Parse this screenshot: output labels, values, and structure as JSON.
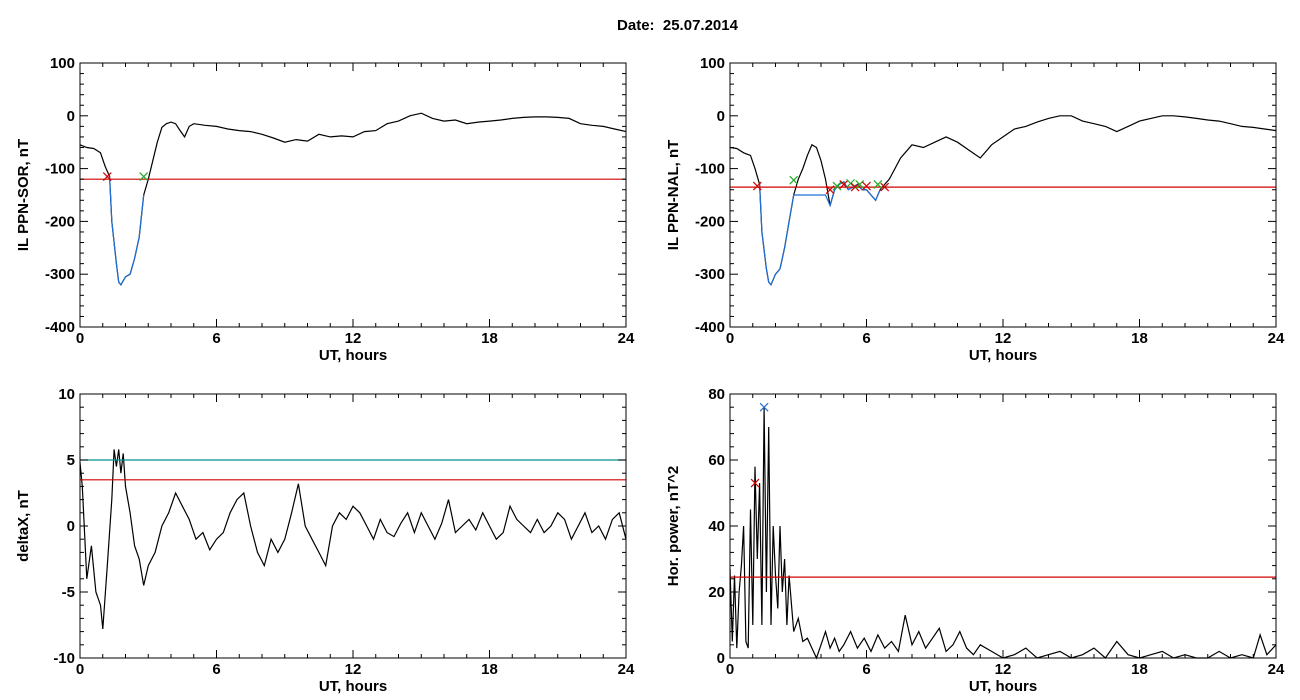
{
  "figure": {
    "title": "Date:  25.07.2014"
  },
  "chart_data": [
    {
      "type": "line",
      "title": "",
      "xlabel": "UT, hours",
      "ylabel": "IL PPN-SOR, nT",
      "xlim": [
        0,
        24
      ],
      "ylim": [
        -400,
        100
      ],
      "xticks": [
        0,
        6,
        12,
        18,
        24
      ],
      "yticks": [
        -400,
        -300,
        -200,
        -100,
        0,
        100
      ],
      "series": [
        {
          "color": "#000000",
          "x": [
            0,
            0.3,
            0.6,
            0.9,
            1.1,
            1.3,
            1.4,
            1.6,
            1.7,
            1.8,
            2.0,
            2.2,
            2.4,
            2.6,
            2.8,
            3.0,
            3.2,
            3.4,
            3.6,
            3.8,
            4.0,
            4.2,
            4.4,
            4.6,
            4.8,
            5.0,
            5.5,
            6.0,
            6.5,
            7.0,
            7.5,
            8.0,
            8.5,
            9.0,
            9.5,
            10.0,
            10.5,
            11.0,
            11.5,
            12.0,
            12.5,
            13.0,
            13.5,
            14.0,
            14.5,
            15.0,
            15.5,
            16.0,
            16.5,
            17.0,
            17.5,
            18.0,
            18.5,
            19.0,
            19.5,
            20.0,
            20.5,
            21.0,
            21.5,
            22.0,
            22.5,
            23.0,
            23.5,
            24.0
          ],
          "y": [
            -55,
            -60,
            -62,
            -70,
            -95,
            -115,
            -200,
            -280,
            -315,
            -320,
            -305,
            -300,
            -270,
            -230,
            -150,
            -120,
            -85,
            -50,
            -22,
            -15,
            -12,
            -15,
            -28,
            -40,
            -20,
            -15,
            -18,
            -20,
            -25,
            -28,
            -30,
            -35,
            -42,
            -50,
            -45,
            -48,
            -35,
            -40,
            -38,
            -40,
            -30,
            -28,
            -15,
            -10,
            0,
            5,
            -5,
            -10,
            -8,
            -15,
            -12,
            -10,
            -8,
            -5,
            -3,
            -2,
            -2,
            -3,
            -5,
            -15,
            -18,
            -20,
            -25,
            -30
          ]
        },
        {
          "color": "#1f6fd6",
          "x": [
            1.3,
            1.4,
            1.6,
            1.7,
            1.8,
            2.0,
            2.2,
            2.4,
            2.6,
            2.8
          ],
          "y": [
            -115,
            -200,
            -280,
            -315,
            -320,
            -305,
            -300,
            -270,
            -230,
            -150
          ]
        },
        {
          "color": "#d00000",
          "x": [
            0,
            24
          ],
          "y": [
            -120,
            -120
          ]
        }
      ],
      "markers": [
        {
          "x": 1.2,
          "y": -115,
          "color": "#d00000"
        },
        {
          "x": 2.8,
          "y": -115,
          "color": "#22aa22"
        }
      ]
    },
    {
      "type": "line",
      "title": "",
      "xlabel": "UT, hours",
      "ylabel": "IL PPN-NAL, nT",
      "xlim": [
        0,
        24
      ],
      "ylim": [
        -400,
        100
      ],
      "xticks": [
        0,
        6,
        12,
        18,
        24
      ],
      "yticks": [
        -400,
        -300,
        -200,
        -100,
        0,
        100
      ],
      "series": [
        {
          "color": "#000000",
          "x": [
            0,
            0.3,
            0.6,
            0.9,
            1.1,
            1.3,
            1.4,
            1.6,
            1.7,
            1.8,
            2.0,
            2.2,
            2.4,
            2.6,
            2.8,
            3.0,
            3.2,
            3.4,
            3.6,
            3.8,
            4.0,
            4.2,
            4.4,
            4.6,
            4.8,
            5.0,
            5.2,
            5.4,
            5.6,
            5.8,
            6.0,
            6.2,
            6.4,
            6.6,
            6.8,
            7.0,
            7.5,
            8.0,
            8.5,
            9.0,
            9.5,
            10.0,
            10.5,
            11.0,
            11.5,
            12.0,
            12.5,
            13.0,
            13.5,
            14.0,
            14.5,
            15.0,
            15.5,
            16.0,
            16.5,
            17.0,
            17.5,
            18.0,
            18.5,
            19.0,
            19.5,
            20.0,
            20.5,
            21.0,
            21.5,
            22.0,
            22.5,
            23.0,
            23.5,
            24.0
          ],
          "y": [
            -60,
            -62,
            -70,
            -75,
            -100,
            -130,
            -220,
            -290,
            -315,
            -320,
            -300,
            -290,
            -250,
            -200,
            -150,
            -120,
            -100,
            -75,
            -55,
            -60,
            -85,
            -120,
            -170,
            -140,
            -130,
            -125,
            -140,
            -135,
            -130,
            -140,
            -140,
            -150,
            -160,
            -140,
            -130,
            -120,
            -80,
            -55,
            -60,
            -50,
            -40,
            -50,
            -65,
            -80,
            -55,
            -40,
            -25,
            -20,
            -12,
            -5,
            0,
            0,
            -10,
            -15,
            -20,
            -30,
            -20,
            -10,
            -5,
            0,
            0,
            -2,
            -5,
            -8,
            -10,
            -15,
            -20,
            -22,
            -25,
            -28
          ]
        },
        {
          "color": "#1f6fd6",
          "x": [
            1.3,
            1.4,
            1.6,
            1.7,
            1.8,
            2.0,
            2.2,
            2.4,
            2.6,
            2.8,
            4.2,
            4.4,
            4.6,
            4.8,
            5.0,
            5.2,
            5.4,
            5.6,
            5.8,
            6.0,
            6.2,
            6.4,
            6.6
          ],
          "y": [
            -130,
            -220,
            -290,
            -315,
            -320,
            -300,
            -290,
            -250,
            -200,
            -150,
            -150,
            -170,
            -140,
            -130,
            -125,
            -140,
            -135,
            -130,
            -140,
            -140,
            -150,
            -160,
            -140
          ]
        },
        {
          "color": "#d00000",
          "x": [
            0,
            24
          ],
          "y": [
            -135,
            -135
          ]
        }
      ],
      "markers": [
        {
          "x": 1.2,
          "y": -133,
          "color": "#d00000"
        },
        {
          "x": 2.8,
          "y": -122,
          "color": "#22aa22"
        },
        {
          "x": 4.4,
          "y": -140,
          "color": "#d00000"
        },
        {
          "x": 4.7,
          "y": -133,
          "color": "#22aa22"
        },
        {
          "x": 5.0,
          "y": -130,
          "color": "#d00000"
        },
        {
          "x": 5.3,
          "y": -128,
          "color": "#22aa22"
        },
        {
          "x": 5.5,
          "y": -135,
          "color": "#d00000"
        },
        {
          "x": 5.7,
          "y": -130,
          "color": "#22aa22"
        },
        {
          "x": 6.0,
          "y": -133,
          "color": "#d00000"
        },
        {
          "x": 6.5,
          "y": -130,
          "color": "#22aa22"
        },
        {
          "x": 6.8,
          "y": -135,
          "color": "#d00000"
        }
      ]
    },
    {
      "type": "line",
      "title": "",
      "xlabel": "UT, hours",
      "ylabel": "deltaX, nT",
      "xlim": [
        0,
        24
      ],
      "ylim": [
        -10,
        10
      ],
      "xticks": [
        0,
        6,
        12,
        18,
        24
      ],
      "yticks": [
        -10,
        -5,
        0,
        5,
        10
      ],
      "series": [
        {
          "color": "#000000",
          "x": [
            0,
            0.1,
            0.3,
            0.5,
            0.7,
            0.9,
            1.0,
            1.2,
            1.4,
            1.5,
            1.6,
            1.7,
            1.8,
            1.9,
            2.0,
            2.2,
            2.4,
            2.6,
            2.8,
            3.0,
            3.3,
            3.6,
            3.9,
            4.2,
            4.5,
            4.8,
            5.1,
            5.4,
            5.7,
            6.0,
            6.3,
            6.6,
            6.9,
            7.2,
            7.5,
            7.8,
            8.1,
            8.4,
            8.7,
            9.0,
            9.3,
            9.6,
            9.9,
            10.2,
            10.5,
            10.8,
            11.1,
            11.4,
            11.7,
            12.0,
            12.3,
            12.6,
            12.9,
            13.2,
            13.5,
            13.8,
            14.1,
            14.4,
            14.7,
            15.0,
            15.3,
            15.6,
            15.9,
            16.2,
            16.5,
            16.8,
            17.1,
            17.4,
            17.7,
            18.0,
            18.3,
            18.6,
            18.9,
            19.2,
            19.5,
            19.8,
            20.1,
            20.4,
            20.7,
            21.0,
            21.3,
            21.6,
            21.9,
            22.2,
            22.5,
            22.8,
            23.1,
            23.4,
            23.7,
            24.0
          ],
          "y": [
            4.8,
            3,
            -4,
            -1.5,
            -5,
            -6,
            -7.8,
            -3,
            2,
            5.8,
            4.5,
            5.8,
            4,
            5.5,
            3,
            1,
            -1.5,
            -2.5,
            -4.5,
            -3,
            -2,
            0,
            1,
            2.5,
            1.5,
            0.5,
            -1,
            -0.5,
            -1.8,
            -1,
            -0.5,
            1,
            2,
            2.5,
            0,
            -2,
            -3,
            -1,
            -2,
            -1,
            1,
            3.2,
            0,
            -1,
            -2,
            -3,
            0,
            1,
            0.5,
            1.5,
            1,
            0,
            -1,
            0.5,
            -0.5,
            -0.8,
            0.2,
            1,
            -0.5,
            1,
            0,
            -1,
            0.2,
            2,
            -0.5,
            0,
            0.5,
            -0.3,
            1,
            0,
            -1,
            -0.5,
            1.5,
            0.5,
            0,
            -0.5,
            0.5,
            -0.5,
            0,
            1,
            0.5,
            -1,
            0,
            1,
            -0.5,
            0,
            -1,
            0.5,
            1,
            -1
          ]
        },
        {
          "color": "#009090",
          "x": [
            0,
            24
          ],
          "y": [
            5,
            5
          ]
        },
        {
          "color": "#d00000",
          "x": [
            0,
            24
          ],
          "y": [
            3.5,
            3.5
          ]
        }
      ],
      "markers": []
    },
    {
      "type": "line",
      "title": "",
      "xlabel": "UT, hours",
      "ylabel": "Hor. power, nT^2",
      "xlim": [
        0,
        24
      ],
      "ylim": [
        0,
        80
      ],
      "xticks": [
        0,
        6,
        12,
        18,
        24
      ],
      "yticks": [
        0,
        20,
        40,
        60,
        80
      ],
      "series": [
        {
          "color": "#000000",
          "x": [
            0,
            0.1,
            0.2,
            0.3,
            0.4,
            0.5,
            0.6,
            0.7,
            0.8,
            0.9,
            1.0,
            1.1,
            1.2,
            1.3,
            1.4,
            1.5,
            1.6,
            1.7,
            1.8,
            1.9,
            2.0,
            2.1,
            2.2,
            2.3,
            2.4,
            2.5,
            2.6,
            2.8,
            3.0,
            3.2,
            3.4,
            3.6,
            3.8,
            4.0,
            4.2,
            4.4,
            4.6,
            4.8,
            5.0,
            5.3,
            5.6,
            5.9,
            6.2,
            6.5,
            6.8,
            7.1,
            7.4,
            7.7,
            8.0,
            8.3,
            8.6,
            8.9,
            9.2,
            9.5,
            9.8,
            10.1,
            10.4,
            10.7,
            11.0,
            11.5,
            12.0,
            12.5,
            13.0,
            13.5,
            14.0,
            14.5,
            15.0,
            15.5,
            16.0,
            16.5,
            17.0,
            17.5,
            18.0,
            18.5,
            19.0,
            19.5,
            20.0,
            20.5,
            21.0,
            21.5,
            22.0,
            22.5,
            23.0,
            23.3,
            23.6,
            24.0
          ],
          "y": [
            27,
            5,
            25,
            3,
            20,
            28,
            40,
            5,
            3,
            45,
            10,
            58,
            30,
            53,
            10,
            76,
            20,
            70,
            10,
            40,
            25,
            15,
            40,
            20,
            30,
            10,
            25,
            8,
            12,
            5,
            6,
            3,
            0,
            4,
            8,
            3,
            6,
            2,
            4,
            8,
            3,
            6,
            2,
            7,
            3,
            5,
            2,
            13,
            4,
            8,
            3,
            6,
            9,
            2,
            4,
            8,
            3,
            1,
            4,
            2,
            0,
            1,
            3,
            0,
            1,
            2,
            0,
            1,
            3,
            0,
            5,
            1,
            0,
            1,
            2,
            0,
            1,
            0,
            0,
            2,
            0,
            1,
            0,
            7,
            1,
            4
          ]
        },
        {
          "color": "#d00000",
          "x": [
            0,
            24
          ],
          "y": [
            24.5,
            24.5
          ]
        }
      ],
      "markers": [
        {
          "x": 1.1,
          "y": 53,
          "color": "#d00000"
        },
        {
          "x": 1.5,
          "y": 76,
          "color": "#1f6fd6"
        }
      ]
    }
  ]
}
